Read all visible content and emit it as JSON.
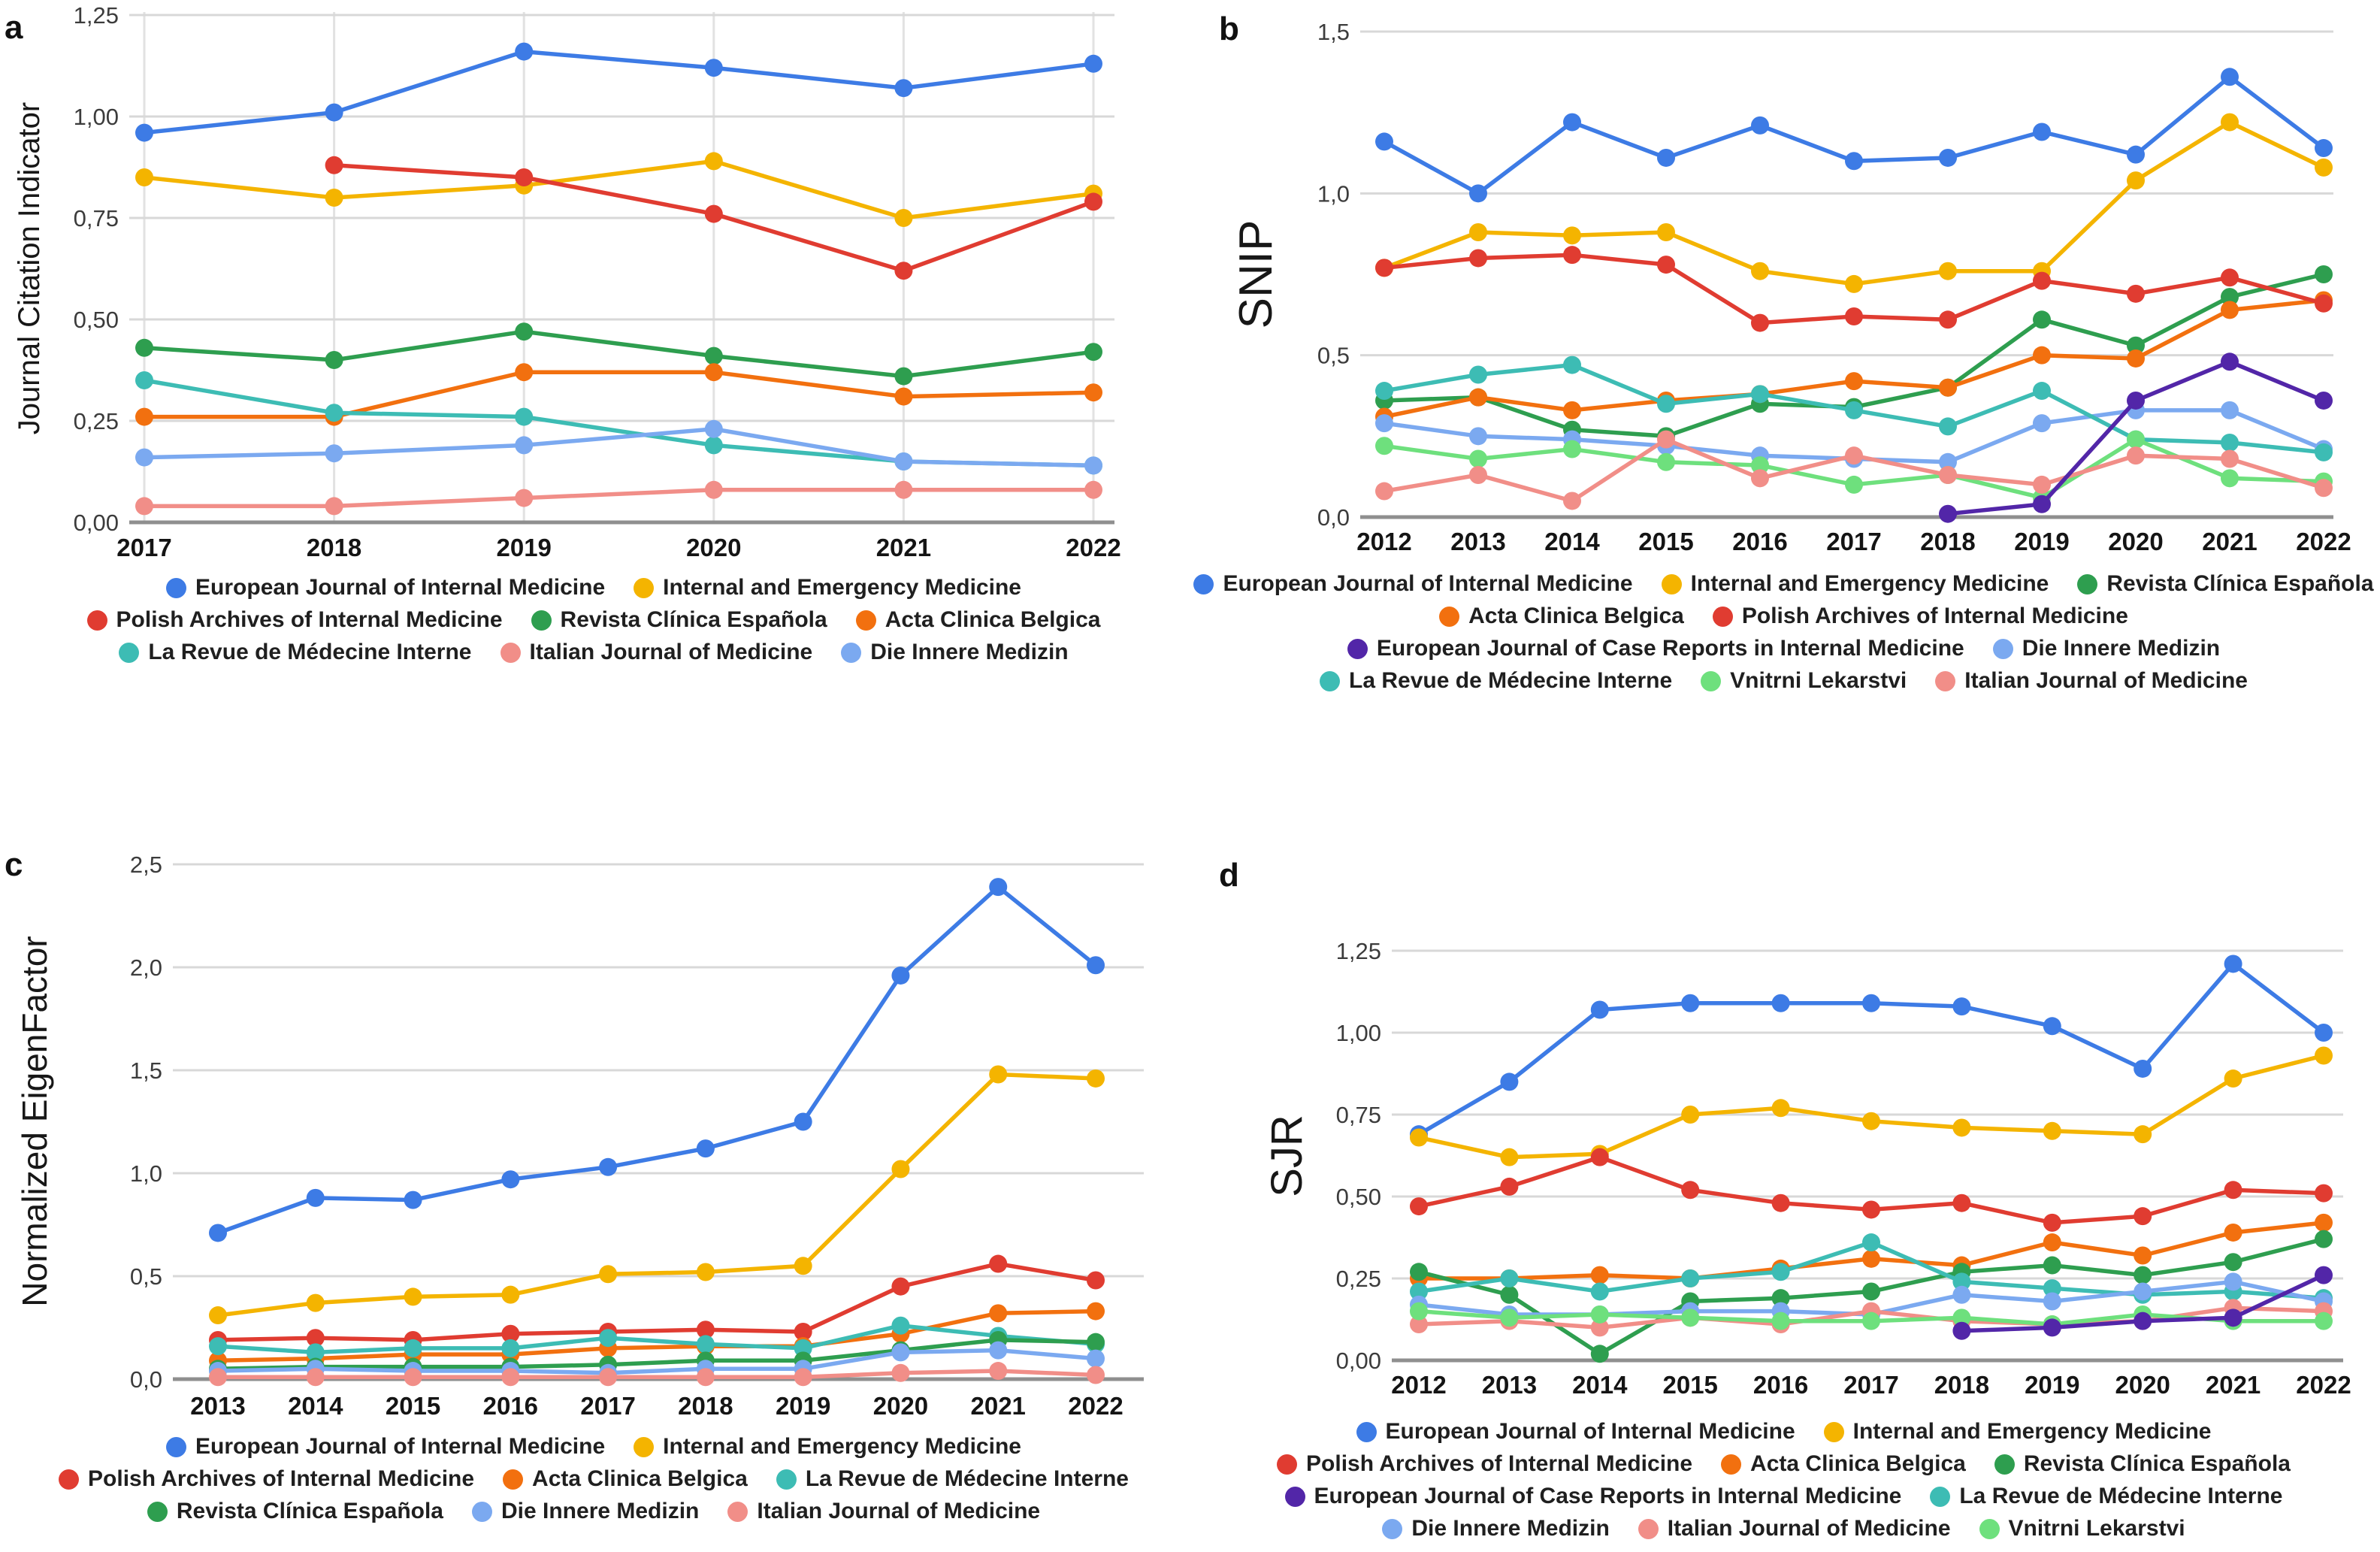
{
  "figure": {
    "panel_letters": {
      "a": "a",
      "b": "b",
      "c": "c",
      "d": "d"
    },
    "background": "#ffffff"
  },
  "palette": {
    "blue": "#3D7BE5",
    "yellow": "#F4B400",
    "red": "#E03C31",
    "green": "#2E9E4F",
    "orange": "#F2700F",
    "teal": "#3DBCB4",
    "lightblue": "#7BA9F0",
    "pink": "#F18E88",
    "lightgreen": "#6EE07D",
    "purple": "#5226A8"
  },
  "chart_data": [
    {
      "id": "a",
      "label": "a",
      "type": "line",
      "title": "",
      "xlabel": "",
      "ylabel": "Journal Citation Indicator",
      "ylim": [
        0,
        1.25
      ],
      "grid": true,
      "vertical_grid": true,
      "legend_position": "bottom",
      "y_ticks": [
        {
          "v": 0.0,
          "t": "0,00"
        },
        {
          "v": 0.25,
          "t": "0,25"
        },
        {
          "v": 0.5,
          "t": "0,50"
        },
        {
          "v": 0.75,
          "t": "0,75"
        },
        {
          "v": 1.0,
          "t": "1,00"
        },
        {
          "v": 1.25,
          "t": "1,25"
        }
      ],
      "categories": [
        "2017",
        "2018",
        "2019",
        "2020",
        "2021",
        "2022"
      ],
      "series": [
        {
          "name": "European Journal of Internal Medicine",
          "color": "#3D7BE5",
          "values": [
            0.96,
            1.01,
            1.16,
            1.12,
            1.07,
            1.13
          ]
        },
        {
          "name": "Internal and Emergency Medicine",
          "color": "#F4B400",
          "values": [
            0.85,
            0.8,
            0.83,
            0.89,
            0.75,
            0.81
          ]
        },
        {
          "name": "Polish Archives of Internal Medicine",
          "color": "#E03C31",
          "values": [
            null,
            0.88,
            0.85,
            0.76,
            0.62,
            0.79
          ]
        },
        {
          "name": "Revista Clínica Española",
          "color": "#2E9E4F",
          "values": [
            0.43,
            0.4,
            0.47,
            0.41,
            0.36,
            0.42
          ]
        },
        {
          "name": "Acta Clinica Belgica",
          "color": "#F2700F",
          "values": [
            0.26,
            0.26,
            0.37,
            0.37,
            0.31,
            0.32
          ]
        },
        {
          "name": "La Revue de Médecine Interne",
          "color": "#3DBCB4",
          "values": [
            0.35,
            0.27,
            0.26,
            0.19,
            0.15,
            0.14
          ]
        },
        {
          "name": "Italian Journal of Medicine",
          "color": "#F18E88",
          "values": [
            0.04,
            0.04,
            0.06,
            0.08,
            0.08,
            0.08
          ]
        },
        {
          "name": "Die Innere Medizin",
          "color": "#7BA9F0",
          "values": [
            0.16,
            0.17,
            0.19,
            0.23,
            0.15,
            0.14
          ]
        }
      ],
      "legend_rows": [
        [
          0,
          1
        ],
        [
          2,
          3,
          4
        ],
        [
          5,
          6,
          7
        ]
      ]
    },
    {
      "id": "b",
      "label": "b",
      "type": "line",
      "title": "",
      "xlabel": "",
      "ylabel": "SNIP",
      "ylim": [
        0,
        1.5
      ],
      "grid": true,
      "vertical_grid": false,
      "legend_position": "bottom",
      "y_ticks": [
        {
          "v": 0.0,
          "t": "0,0"
        },
        {
          "v": 0.5,
          "t": "0,5"
        },
        {
          "v": 1.0,
          "t": "1,0"
        },
        {
          "v": 1.5,
          "t": "1,5"
        }
      ],
      "categories": [
        "2012",
        "2013",
        "2014",
        "2015",
        "2016",
        "2017",
        "2018",
        "2019",
        "2020",
        "2021",
        "2022"
      ],
      "series": [
        {
          "name": "European Journal of Internal Medicine",
          "color": "#3D7BE5",
          "values": [
            1.16,
            1.0,
            1.22,
            1.11,
            1.21,
            1.1,
            1.11,
            1.19,
            1.12,
            1.36,
            1.14
          ]
        },
        {
          "name": "Internal and Emergency Medicine",
          "color": "#F4B400",
          "values": [
            0.77,
            0.88,
            0.87,
            0.88,
            0.76,
            0.72,
            0.76,
            0.76,
            1.04,
            1.22,
            1.08
          ]
        },
        {
          "name": "Revista Clínica Española",
          "color": "#2E9E4F",
          "values": [
            0.36,
            0.37,
            0.27,
            0.25,
            0.35,
            0.34,
            0.4,
            0.61,
            0.53,
            0.68,
            0.75
          ]
        },
        {
          "name": "Acta Clinica Belgica",
          "color": "#F2700F",
          "values": [
            0.31,
            0.37,
            0.33,
            0.36,
            0.38,
            0.42,
            0.4,
            0.5,
            0.49,
            0.64,
            0.67
          ]
        },
        {
          "name": "Polish Archives of Internal Medicine",
          "color": "#E03C31",
          "values": [
            0.77,
            0.8,
            0.81,
            0.78,
            0.6,
            0.62,
            0.61,
            0.73,
            0.69,
            0.74,
            0.66
          ]
        },
        {
          "name": "Die Innere Medizin",
          "color": "#7BA9F0",
          "values": [
            0.29,
            0.25,
            0.24,
            0.22,
            0.19,
            0.18,
            0.17,
            0.29,
            0.33,
            0.33,
            0.21
          ]
        },
        {
          "name": "La Revue de Médecine Interne",
          "color": "#3DBCB4",
          "values": [
            0.39,
            0.44,
            0.47,
            0.35,
            0.38,
            0.33,
            0.28,
            0.39,
            0.24,
            0.23,
            0.2
          ]
        },
        {
          "name": "Vnitrni Lekarstvi",
          "color": "#6EE07D",
          "values": [
            0.22,
            0.18,
            0.21,
            0.17,
            0.16,
            0.1,
            0.13,
            0.06,
            0.24,
            0.12,
            0.11
          ]
        },
        {
          "name": "Italian Journal of Medicine",
          "color": "#F18E88",
          "values": [
            0.08,
            0.13,
            0.05,
            0.24,
            0.12,
            0.19,
            0.13,
            0.1,
            0.19,
            0.18,
            0.09
          ]
        },
        {
          "name": "European Journal of Case Reports in Internal Medicine",
          "color": "#5226A8",
          "values": [
            null,
            null,
            null,
            null,
            null,
            null,
            0.01,
            0.04,
            0.36,
            0.48,
            0.36
          ]
        }
      ],
      "legend_rows": [
        [
          0,
          1,
          2
        ],
        [
          3,
          4
        ],
        [
          9,
          5
        ],
        [
          6,
          7,
          8
        ]
      ]
    },
    {
      "id": "c",
      "label": "c",
      "type": "line",
      "title": "",
      "xlabel": "",
      "ylabel": "Normalized EigenFactor",
      "ylim": [
        0,
        2.5
      ],
      "grid": true,
      "vertical_grid": false,
      "legend_position": "bottom",
      "y_ticks": [
        {
          "v": 0.0,
          "t": "0,0"
        },
        {
          "v": 0.5,
          "t": "0,5"
        },
        {
          "v": 1.0,
          "t": "1,0"
        },
        {
          "v": 1.5,
          "t": "1,5"
        },
        {
          "v": 2.0,
          "t": "2,0"
        },
        {
          "v": 2.5,
          "t": "2,5"
        }
      ],
      "categories": [
        "2013",
        "2014",
        "2015",
        "2016",
        "2017",
        "2018",
        "2019",
        "2020",
        "2021",
        "2022"
      ],
      "series": [
        {
          "name": "European Journal of Internal Medicine",
          "color": "#3D7BE5",
          "values": [
            0.71,
            0.88,
            0.87,
            0.97,
            1.03,
            1.12,
            1.25,
            1.96,
            2.39,
            2.01
          ]
        },
        {
          "name": "Internal and Emergency Medicine",
          "color": "#F4B400",
          "values": [
            0.31,
            0.37,
            0.4,
            0.41,
            0.51,
            0.52,
            0.55,
            1.02,
            1.48,
            1.46
          ]
        },
        {
          "name": "Polish Archives of Internal Medicine",
          "color": "#E03C31",
          "values": [
            0.19,
            0.2,
            0.19,
            0.22,
            0.23,
            0.24,
            0.23,
            0.45,
            0.56,
            0.48
          ]
        },
        {
          "name": "Acta Clinica Belgica",
          "color": "#F2700F",
          "values": [
            0.09,
            0.1,
            0.12,
            0.12,
            0.15,
            0.16,
            0.16,
            0.22,
            0.32,
            0.33
          ]
        },
        {
          "name": "La Revue de Médecine Interne",
          "color": "#3DBCB4",
          "values": [
            0.16,
            0.13,
            0.15,
            0.15,
            0.2,
            0.17,
            0.15,
            0.26,
            0.21,
            0.17
          ]
        },
        {
          "name": "Revista Clínica Española",
          "color": "#2E9E4F",
          "values": [
            0.05,
            0.06,
            0.06,
            0.06,
            0.07,
            0.09,
            0.09,
            0.14,
            0.19,
            0.18
          ]
        },
        {
          "name": "Die Innere Medizin",
          "color": "#7BA9F0",
          "values": [
            0.04,
            0.05,
            0.04,
            0.04,
            0.03,
            0.05,
            0.05,
            0.13,
            0.14,
            0.1
          ]
        },
        {
          "name": "Italian Journal of Medicine",
          "color": "#F18E88",
          "values": [
            0.01,
            0.01,
            0.01,
            0.01,
            0.01,
            0.01,
            0.01,
            0.03,
            0.04,
            0.02
          ]
        }
      ],
      "legend_rows": [
        [
          0,
          1
        ],
        [
          2,
          3,
          4
        ],
        [
          5,
          6,
          7
        ]
      ]
    },
    {
      "id": "d",
      "label": "d",
      "type": "line",
      "title": "",
      "xlabel": "",
      "ylabel": "SJR",
      "ylim": [
        0,
        1.25
      ],
      "grid": true,
      "vertical_grid": false,
      "legend_position": "bottom",
      "y_ticks": [
        {
          "v": 0.0,
          "t": "0,00"
        },
        {
          "v": 0.25,
          "t": "0,25"
        },
        {
          "v": 0.5,
          "t": "0,50"
        },
        {
          "v": 0.75,
          "t": "0,75"
        },
        {
          "v": 1.0,
          "t": "1,00"
        },
        {
          "v": 1.25,
          "t": "1,25"
        }
      ],
      "categories": [
        "2012",
        "2013",
        "2014",
        "2015",
        "2016",
        "2017",
        "2018",
        "2019",
        "2020",
        "2021",
        "2022"
      ],
      "series": [
        {
          "name": "European Journal of Internal Medicine",
          "color": "#3D7BE5",
          "values": [
            0.69,
            0.85,
            1.07,
            1.09,
            1.09,
            1.09,
            1.08,
            1.02,
            0.89,
            1.21,
            1.0
          ]
        },
        {
          "name": "Internal and Emergency Medicine",
          "color": "#F4B400",
          "values": [
            0.68,
            0.62,
            0.63,
            0.75,
            0.77,
            0.73,
            0.71,
            0.7,
            0.69,
            0.86,
            0.93
          ]
        },
        {
          "name": "Polish Archives of Internal Medicine",
          "color": "#E03C31",
          "values": [
            0.47,
            0.53,
            0.62,
            0.52,
            0.48,
            0.46,
            0.48,
            0.42,
            0.44,
            0.52,
            0.51
          ]
        },
        {
          "name": "Acta Clinica Belgica",
          "color": "#F2700F",
          "values": [
            0.25,
            0.25,
            0.26,
            0.25,
            0.28,
            0.31,
            0.29,
            0.36,
            0.32,
            0.39,
            0.42
          ]
        },
        {
          "name": "Revista Clínica Española",
          "color": "#2E9E4F",
          "values": [
            0.27,
            0.2,
            0.02,
            0.18,
            0.19,
            0.21,
            0.27,
            0.29,
            0.26,
            0.3,
            0.37
          ]
        },
        {
          "name": "La Revue de Médecine Interne",
          "color": "#3DBCB4",
          "values": [
            0.21,
            0.25,
            0.21,
            0.25,
            0.27,
            0.36,
            0.24,
            0.22,
            0.2,
            0.21,
            0.19
          ]
        },
        {
          "name": "Die Innere Medizin",
          "color": "#7BA9F0",
          "values": [
            0.17,
            0.14,
            0.14,
            0.15,
            0.15,
            0.14,
            0.2,
            0.18,
            0.21,
            0.24,
            0.18
          ]
        },
        {
          "name": "Italian Journal of Medicine",
          "color": "#F18E88",
          "values": [
            0.11,
            0.12,
            0.1,
            0.13,
            0.11,
            0.15,
            0.12,
            0.11,
            0.12,
            0.16,
            0.15
          ]
        },
        {
          "name": "Vnitrni Lekarstvi",
          "color": "#6EE07D",
          "values": [
            0.15,
            0.13,
            0.14,
            0.13,
            0.12,
            0.12,
            0.13,
            0.11,
            0.14,
            0.12,
            0.12
          ]
        },
        {
          "name": "European Journal of Case Reports in Internal Medicine",
          "color": "#5226A8",
          "values": [
            null,
            null,
            null,
            null,
            null,
            null,
            0.09,
            0.1,
            0.12,
            0.13,
            0.26
          ]
        }
      ],
      "legend_rows": [
        [
          0,
          1
        ],
        [
          2,
          3,
          4
        ],
        [
          9,
          5
        ],
        [
          6,
          7,
          8
        ]
      ]
    }
  ]
}
